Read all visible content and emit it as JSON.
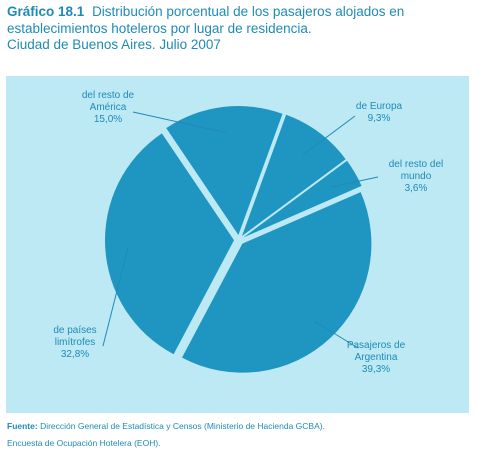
{
  "title": {
    "figure_number": "Gráfico 18.1",
    "line1": "Distribución porcentual de los pasajeros alojados en",
    "line2": "establecimientos hoteleros por lugar de residencia.",
    "line3": "Ciudad de Buenos Aires. Julio 2007"
  },
  "source": {
    "label": "Fuente:",
    "text": "Dirección General de Estadística y Censos (Ministerio de Hacienda GCBA).",
    "line2": "Encuesta de Ocupación Hotelera (EOH)."
  },
  "colors": {
    "accent": "#1f8bb5",
    "slice": "#1f95c2",
    "background": "#bde9f5"
  },
  "chart_data": {
    "type": "pie",
    "title": "Distribución porcentual de los pasajeros alojados en establecimientos hoteleros por lugar de residencia. Ciudad de Buenos Aires. Julio 2007",
    "slices": [
      {
        "label_lines": [
          "de Europa"
        ],
        "value_label": "9,3%",
        "value": 9.3
      },
      {
        "label_lines": [
          "del resto del",
          "mundo"
        ],
        "value_label": "3,6%",
        "value": 3.6
      },
      {
        "label_lines": [
          "Pasajeros de",
          "Argentina"
        ],
        "value_label": "39,3%",
        "value": 39.3
      },
      {
        "label_lines": [
          "de países",
          "limítrofes"
        ],
        "value_label": "32,8%",
        "value": 32.8
      },
      {
        "label_lines": [
          "del resto de",
          "América"
        ],
        "value_label": "15,0%",
        "value": 15.0
      }
    ],
    "legend": "none",
    "grid": false
  }
}
